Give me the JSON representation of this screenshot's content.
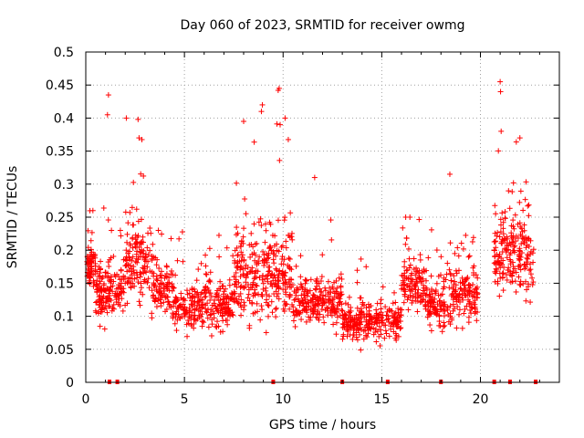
{
  "chart_data": {
    "type": "scatter",
    "title": "Day 060 of 2023, SRMTID for receiver owmg",
    "xlabel": "GPS time / hours",
    "ylabel": "SRMTID / TECUs",
    "xlim": [
      0,
      24
    ],
    "ylim": [
      0,
      0.5
    ],
    "x_ticks": [
      0,
      5,
      10,
      15,
      20
    ],
    "x_tick_labels": [
      "0",
      "5",
      "10",
      "15",
      "20"
    ],
    "y_ticks": [
      0,
      0.05,
      0.1,
      0.15,
      0.2,
      0.25,
      0.3,
      0.35,
      0.4,
      0.45,
      0.5
    ],
    "y_tick_labels": [
      "0",
      "0.05",
      "0.1",
      "0.15",
      "0.2",
      "0.25",
      "0.3",
      "0.35",
      "0.4",
      "0.45",
      "0.5"
    ],
    "grid": true,
    "marker": "plus",
    "color": "#ff0000",
    "gap_markers_x": [
      1.2,
      1.6,
      9.5,
      13.0,
      15.3,
      18.0,
      20.7,
      21.5,
      22.8
    ],
    "seed": 60,
    "clusters": [
      {
        "x": [
          0.0,
          0.5
        ],
        "n": 70,
        "y_mean": 0.175,
        "y_sd": 0.035,
        "y_min": 0.07,
        "y_max": 0.26
      },
      {
        "x": [
          0.5,
          1.2
        ],
        "n": 90,
        "y_mean": 0.13,
        "y_sd": 0.04,
        "y_min": 0.08,
        "y_max": 0.44
      },
      {
        "x": [
          1.2,
          2.0
        ],
        "n": 70,
        "y_mean": 0.14,
        "y_sd": 0.03,
        "y_min": 0.06,
        "y_max": 0.23
      },
      {
        "x": [
          2.0,
          3.4
        ],
        "n": 140,
        "y_mean": 0.18,
        "y_sd": 0.06,
        "y_min": 0.05,
        "y_max": 0.4
      },
      {
        "x": [
          3.4,
          4.4
        ],
        "n": 90,
        "y_mean": 0.14,
        "y_sd": 0.035,
        "y_min": 0.06,
        "y_max": 0.23
      },
      {
        "x": [
          4.4,
          5.6
        ],
        "n": 110,
        "y_mean": 0.11,
        "y_sd": 0.03,
        "y_min": 0.04,
        "y_max": 0.24
      },
      {
        "x": [
          5.6,
          7.5
        ],
        "n": 170,
        "y_mean": 0.115,
        "y_sd": 0.035,
        "y_min": 0.04,
        "y_max": 0.26
      },
      {
        "x": [
          7.5,
          9.0
        ],
        "n": 150,
        "y_mean": 0.16,
        "y_sd": 0.06,
        "y_min": 0.05,
        "y_max": 0.42
      },
      {
        "x": [
          9.0,
          10.5
        ],
        "n": 160,
        "y_mean": 0.16,
        "y_sd": 0.06,
        "y_min": 0.05,
        "y_max": 0.45
      },
      {
        "x": [
          10.5,
          13.0
        ],
        "n": 220,
        "y_mean": 0.12,
        "y_sd": 0.035,
        "y_min": 0.04,
        "y_max": 0.31
      },
      {
        "x": [
          13.0,
          16.0
        ],
        "n": 260,
        "y_mean": 0.09,
        "y_sd": 0.025,
        "y_min": 0.035,
        "y_max": 0.24
      },
      {
        "x": [
          16.0,
          17.2
        ],
        "n": 110,
        "y_mean": 0.15,
        "y_sd": 0.035,
        "y_min": 0.07,
        "y_max": 0.25
      },
      {
        "x": [
          17.2,
          18.4
        ],
        "n": 110,
        "y_mean": 0.12,
        "y_sd": 0.035,
        "y_min": 0.06,
        "y_max": 0.24
      },
      {
        "x": [
          18.4,
          19.9
        ],
        "n": 140,
        "y_mean": 0.13,
        "y_sd": 0.04,
        "y_min": 0.07,
        "y_max": 0.32
      },
      {
        "x": [
          20.7,
          21.4
        ],
        "n": 80,
        "y_mean": 0.19,
        "y_sd": 0.06,
        "y_min": 0.09,
        "y_max": 0.45
      },
      {
        "x": [
          21.4,
          22.7
        ],
        "n": 130,
        "y_mean": 0.19,
        "y_sd": 0.06,
        "y_min": 0.07,
        "y_max": 0.37
      }
    ],
    "highlight_points": [
      {
        "x": 1.15,
        "y": 0.435
      },
      {
        "x": 1.1,
        "y": 0.405
      },
      {
        "x": 2.65,
        "y": 0.398
      },
      {
        "x": 2.7,
        "y": 0.37
      },
      {
        "x": 8.0,
        "y": 0.395
      },
      {
        "x": 8.95,
        "y": 0.42
      },
      {
        "x": 8.9,
        "y": 0.41
      },
      {
        "x": 9.8,
        "y": 0.445
      },
      {
        "x": 9.75,
        "y": 0.442
      },
      {
        "x": 10.1,
        "y": 0.4
      },
      {
        "x": 9.85,
        "y": 0.39
      },
      {
        "x": 11.6,
        "y": 0.31
      },
      {
        "x": 18.45,
        "y": 0.315
      },
      {
        "x": 21.0,
        "y": 0.455
      },
      {
        "x": 21.02,
        "y": 0.44
      },
      {
        "x": 21.05,
        "y": 0.38
      },
      {
        "x": 22.0,
        "y": 0.37
      }
    ]
  }
}
